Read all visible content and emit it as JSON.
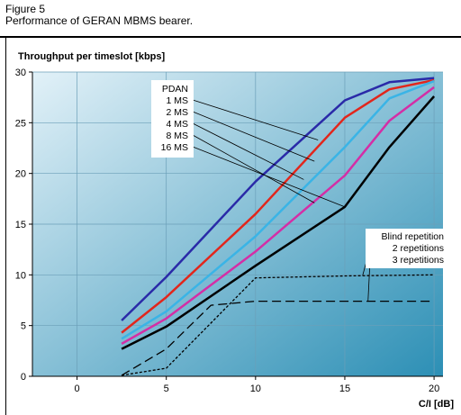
{
  "figure": {
    "number": "Figure 5",
    "caption": "Performance of GERAN MBMS bearer."
  },
  "chart_data": {
    "type": "line",
    "ylabel": "Throughput per timeslot [kbps]",
    "xlabel": "C/I [dB]",
    "xlim": [
      -2.5,
      20.5
    ],
    "ylim": [
      0,
      30
    ],
    "x_ticks": [
      "0",
      "5",
      "10",
      "15",
      "20"
    ],
    "y_ticks": [
      "0",
      "5",
      "10",
      "15",
      "20",
      "25",
      "30"
    ],
    "grid": true,
    "background_gradient": [
      "#e2f1f8",
      "#2c8fb5"
    ],
    "pdan_label": "PDAN",
    "series": [
      {
        "name": "1 MS",
        "color": "#2a2aa8",
        "width": 2.5,
        "dash": "",
        "x": [
          2.5,
          5,
          10,
          15,
          17.5,
          20
        ],
        "y": [
          5.5,
          9.8,
          19.2,
          27.2,
          29.0,
          29.4
        ]
      },
      {
        "name": "2 MS",
        "color": "#e2261c",
        "width": 2.5,
        "dash": "",
        "x": [
          2.5,
          5,
          10,
          15,
          17.5,
          20
        ],
        "y": [
          4.3,
          7.8,
          16.0,
          25.5,
          28.3,
          29.2
        ]
      },
      {
        "name": "4 MS",
        "color": "#3ab4e6",
        "width": 2.5,
        "dash": "",
        "x": [
          2.5,
          5,
          10,
          15,
          17.5,
          20
        ],
        "y": [
          3.7,
          6.4,
          13.8,
          22.6,
          27.4,
          29.1
        ]
      },
      {
        "name": "8 MS",
        "color": "#d42ea6",
        "width": 2.5,
        "dash": "",
        "x": [
          2.5,
          5,
          10,
          15,
          17.5,
          20
        ],
        "y": [
          3.2,
          5.7,
          12.3,
          19.8,
          25.2,
          28.5
        ]
      },
      {
        "name": "16 MS",
        "color": "#000000",
        "width": 2.5,
        "dash": "",
        "x": [
          2.5,
          5,
          10,
          15,
          17.5,
          20
        ],
        "y": [
          2.7,
          4.9,
          10.9,
          16.7,
          22.6,
          27.6
        ]
      },
      {
        "name": "2 repetitions",
        "color": "#000000",
        "width": 1.3,
        "dash": "3,2",
        "x": [
          2.5,
          5,
          10,
          15,
          20
        ],
        "y": [
          0.1,
          0.8,
          9.7,
          9.9,
          10.0
        ]
      },
      {
        "name": "3 repetitions",
        "color": "#000000",
        "width": 1.3,
        "dash": "10,5",
        "x": [
          2.5,
          5,
          7.5,
          10,
          15,
          20
        ],
        "y": [
          0.1,
          2.7,
          7.0,
          7.4,
          7.4,
          7.4
        ]
      }
    ],
    "annotations": {
      "blind_title": "Blind repetition",
      "blind_items": [
        "2 repetitions",
        "3 repetitions"
      ]
    }
  }
}
